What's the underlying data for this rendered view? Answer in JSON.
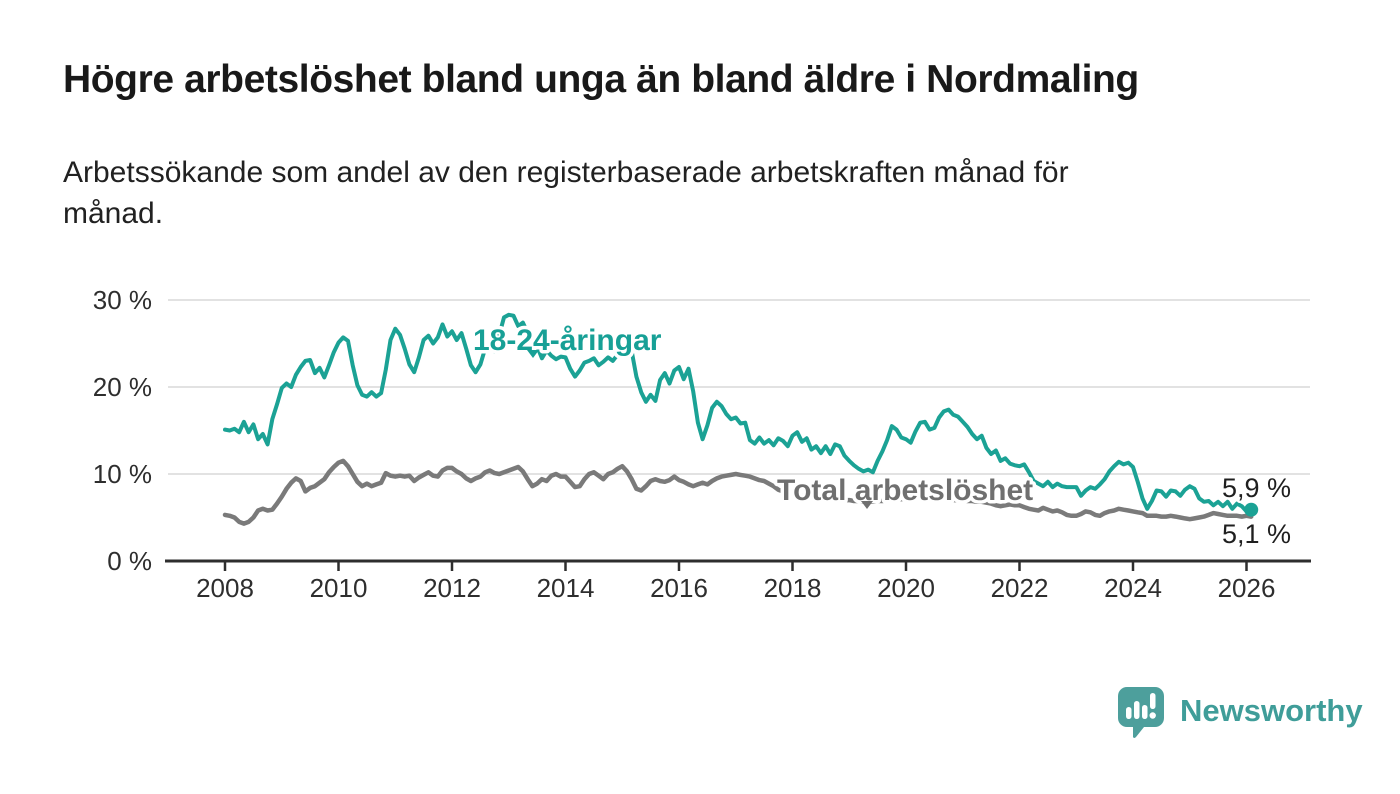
{
  "header": {
    "title": "Högre arbetslöshet bland unga än bland äldre i Nordmaling",
    "subtitle_lines": [
      "Arbetssökande som andel av den registerbaserade arbetskraften månad för",
      "månad."
    ]
  },
  "chart_data": {
    "type": "line",
    "title": "Högre arbetslöshet bland unga än bland äldre i Nordmaling",
    "subtitle": "Arbetssökande som andel av den registerbaserade arbetskraften månad för månad.",
    "grid": "horizontal",
    "legend_position": "inline-labels",
    "x_axis": {
      "start_year": 2008,
      "start_month": 1,
      "frequency": "monthly",
      "ticks": [
        2008,
        2010,
        2012,
        2014,
        2016,
        2018,
        2020,
        2022,
        2024,
        2026
      ]
    },
    "y_axis": {
      "unit": "%",
      "max": 30,
      "ticks": [
        {
          "value": 0,
          "label": "0 %"
        },
        {
          "value": 10,
          "label": "10 %"
        },
        {
          "value": 20,
          "label": "20 %"
        },
        {
          "value": 30,
          "label": "30 %"
        }
      ]
    },
    "series": [
      {
        "name": "18-24-åringar",
        "color": "#1ba295",
        "label_color": "#17a096",
        "end_value_label": "5,9 %",
        "end_value": 5.9,
        "values": [
          15.1,
          15.0,
          15.2,
          14.8,
          16.0,
          14.8,
          15.7,
          14.0,
          14.6,
          13.4,
          16.3,
          18.0,
          19.9,
          20.4,
          20.0,
          21.4,
          22.3,
          23.0,
          23.1,
          21.6,
          22.2,
          21.1,
          22.5,
          24.0,
          25.1,
          25.7,
          25.3,
          22.5,
          20.2,
          19.1,
          18.9,
          19.4,
          18.9,
          19.3,
          22.0,
          25.4,
          26.7,
          26.0,
          24.4,
          22.6,
          21.7,
          23.4,
          25.4,
          25.9,
          25.0,
          25.7,
          27.2,
          25.8,
          26.4,
          25.4,
          26.2,
          24.4,
          22.5,
          21.7,
          22.6,
          24.4,
          25.0,
          24.1,
          26.0,
          28.0,
          28.3,
          28.2,
          27.0,
          27.4,
          26.2,
          25.1,
          24.7,
          23.3,
          24.2,
          23.6,
          23.2,
          23.5,
          23.4,
          22.1,
          21.2,
          21.9,
          22.8,
          23.0,
          23.3,
          22.5,
          22.9,
          23.4,
          23.0,
          23.7,
          24.3,
          24.5,
          24.1,
          21.2,
          19.4,
          18.3,
          19.1,
          18.4,
          20.8,
          21.6,
          20.4,
          21.9,
          22.3,
          20.9,
          22.1,
          19.5,
          15.9,
          14.0,
          15.6,
          17.6,
          18.3,
          17.8,
          16.9,
          16.3,
          16.5,
          15.8,
          15.9,
          13.9,
          13.5,
          14.2,
          13.5,
          13.9,
          13.3,
          14.1,
          13.8,
          13.2,
          14.4,
          14.8,
          13.7,
          14.1,
          12.8,
          13.2,
          12.4,
          13.2,
          12.3,
          13.4,
          13.2,
          12.1,
          11.5,
          11.0,
          10.6,
          10.3,
          10.5,
          10.2,
          11.5,
          12.6,
          13.9,
          15.5,
          15.1,
          14.2,
          14.0,
          13.6,
          14.9,
          15.9,
          16.0,
          15.1,
          15.3,
          16.5,
          17.2,
          17.4,
          16.8,
          16.6,
          16.0,
          15.4,
          14.6,
          14.0,
          14.4,
          13.0,
          12.3,
          12.7,
          11.5,
          11.8,
          11.2,
          11.0,
          10.9,
          11.1,
          10.2,
          9.2,
          8.9,
          8.6,
          9.1,
          8.5,
          8.9,
          8.6,
          8.5,
          8.5,
          8.5,
          7.5,
          8.1,
          8.5,
          8.3,
          8.8,
          9.4,
          10.3,
          10.9,
          11.4,
          11.1,
          11.3,
          10.8,
          9.1,
          7.2,
          6.0,
          6.9,
          8.1,
          8.0,
          7.4,
          8.1,
          8.0,
          7.5,
          8.2,
          8.6,
          8.3,
          7.2,
          6.8,
          6.9,
          6.4,
          6.8,
          6.3,
          6.8,
          6.0,
          6.6,
          6.3,
          5.7,
          5.9
        ]
      },
      {
        "name": "Total arbetslöshet",
        "color": "#7a7a7a",
        "label_color": "#6f6f6f",
        "end_value_label": "5,1 %",
        "end_value": 5.1,
        "values": [
          5.3,
          5.2,
          5.0,
          4.5,
          4.3,
          4.5,
          5.0,
          5.8,
          6.0,
          5.8,
          5.9,
          6.6,
          7.4,
          8.3,
          9.0,
          9.5,
          9.2,
          8.0,
          8.4,
          8.6,
          9.0,
          9.4,
          10.2,
          10.8,
          11.3,
          11.5,
          10.9,
          10.0,
          9.1,
          8.6,
          8.9,
          8.6,
          8.8,
          9.0,
          10.1,
          9.8,
          9.7,
          9.8,
          9.7,
          9.8,
          9.2,
          9.6,
          9.9,
          10.2,
          9.8,
          9.7,
          10.4,
          10.7,
          10.7,
          10.3,
          10.0,
          9.5,
          9.2,
          9.5,
          9.7,
          10.2,
          10.4,
          10.1,
          10.0,
          10.2,
          10.4,
          10.6,
          10.8,
          10.3,
          9.4,
          8.6,
          8.9,
          9.4,
          9.2,
          9.8,
          10.0,
          9.7,
          9.7,
          9.1,
          8.5,
          8.6,
          9.4,
          10.0,
          10.2,
          9.8,
          9.4,
          10.0,
          10.2,
          10.6,
          10.9,
          10.3,
          9.4,
          8.3,
          8.1,
          8.6,
          9.2,
          9.4,
          9.2,
          9.1,
          9.3,
          9.7,
          9.3,
          9.1,
          8.8,
          8.6,
          8.8,
          9.0,
          8.8,
          9.2,
          9.5,
          9.7,
          9.8,
          9.9,
          10.0,
          9.9,
          9.8,
          9.7,
          9.5,
          9.3,
          9.2,
          8.9,
          8.6,
          8.2,
          8.0,
          7.8,
          7.7,
          7.6,
          7.5,
          7.4,
          7.3,
          7.3,
          7.2,
          7.2,
          7.1,
          7.1,
          7.0,
          7.0,
          7.0,
          6.9,
          6.9,
          6.8,
          6.8,
          6.8,
          6.9,
          6.9,
          7.0,
          7.0,
          7.1,
          7.1,
          7.2,
          7.2,
          7.3,
          7.3,
          7.2,
          7.2,
          7.2,
          7.1,
          7.1,
          7.0,
          7.0,
          7.0,
          7.0,
          6.9,
          6.9,
          6.8,
          6.8,
          6.7,
          6.6,
          6.4,
          6.3,
          6.4,
          6.5,
          6.4,
          6.4,
          6.2,
          6.0,
          5.9,
          5.8,
          6.1,
          5.9,
          5.7,
          5.8,
          5.6,
          5.3,
          5.2,
          5.2,
          5.4,
          5.7,
          5.6,
          5.3,
          5.2,
          5.5,
          5.7,
          5.8,
          6.0,
          5.9,
          5.8,
          5.7,
          5.6,
          5.5,
          5.2,
          5.2,
          5.2,
          5.1,
          5.1,
          5.2,
          5.1,
          5.0,
          4.9,
          4.8,
          4.9,
          5.0,
          5.1,
          5.3,
          5.5,
          5.4,
          5.3,
          5.2,
          5.2,
          5.2,
          5.1,
          5.2,
          5.1
        ]
      }
    ],
    "colors": {
      "accent_teal": "#1ba295",
      "line_gray": "#7a7a7a",
      "gridline": "#d9d9d9",
      "axis": "#2e2e2e"
    }
  },
  "footer": {
    "brand": "Newsworthy",
    "logo_color": "#4d9f9c",
    "wordmark_color": "#3f9d99"
  }
}
